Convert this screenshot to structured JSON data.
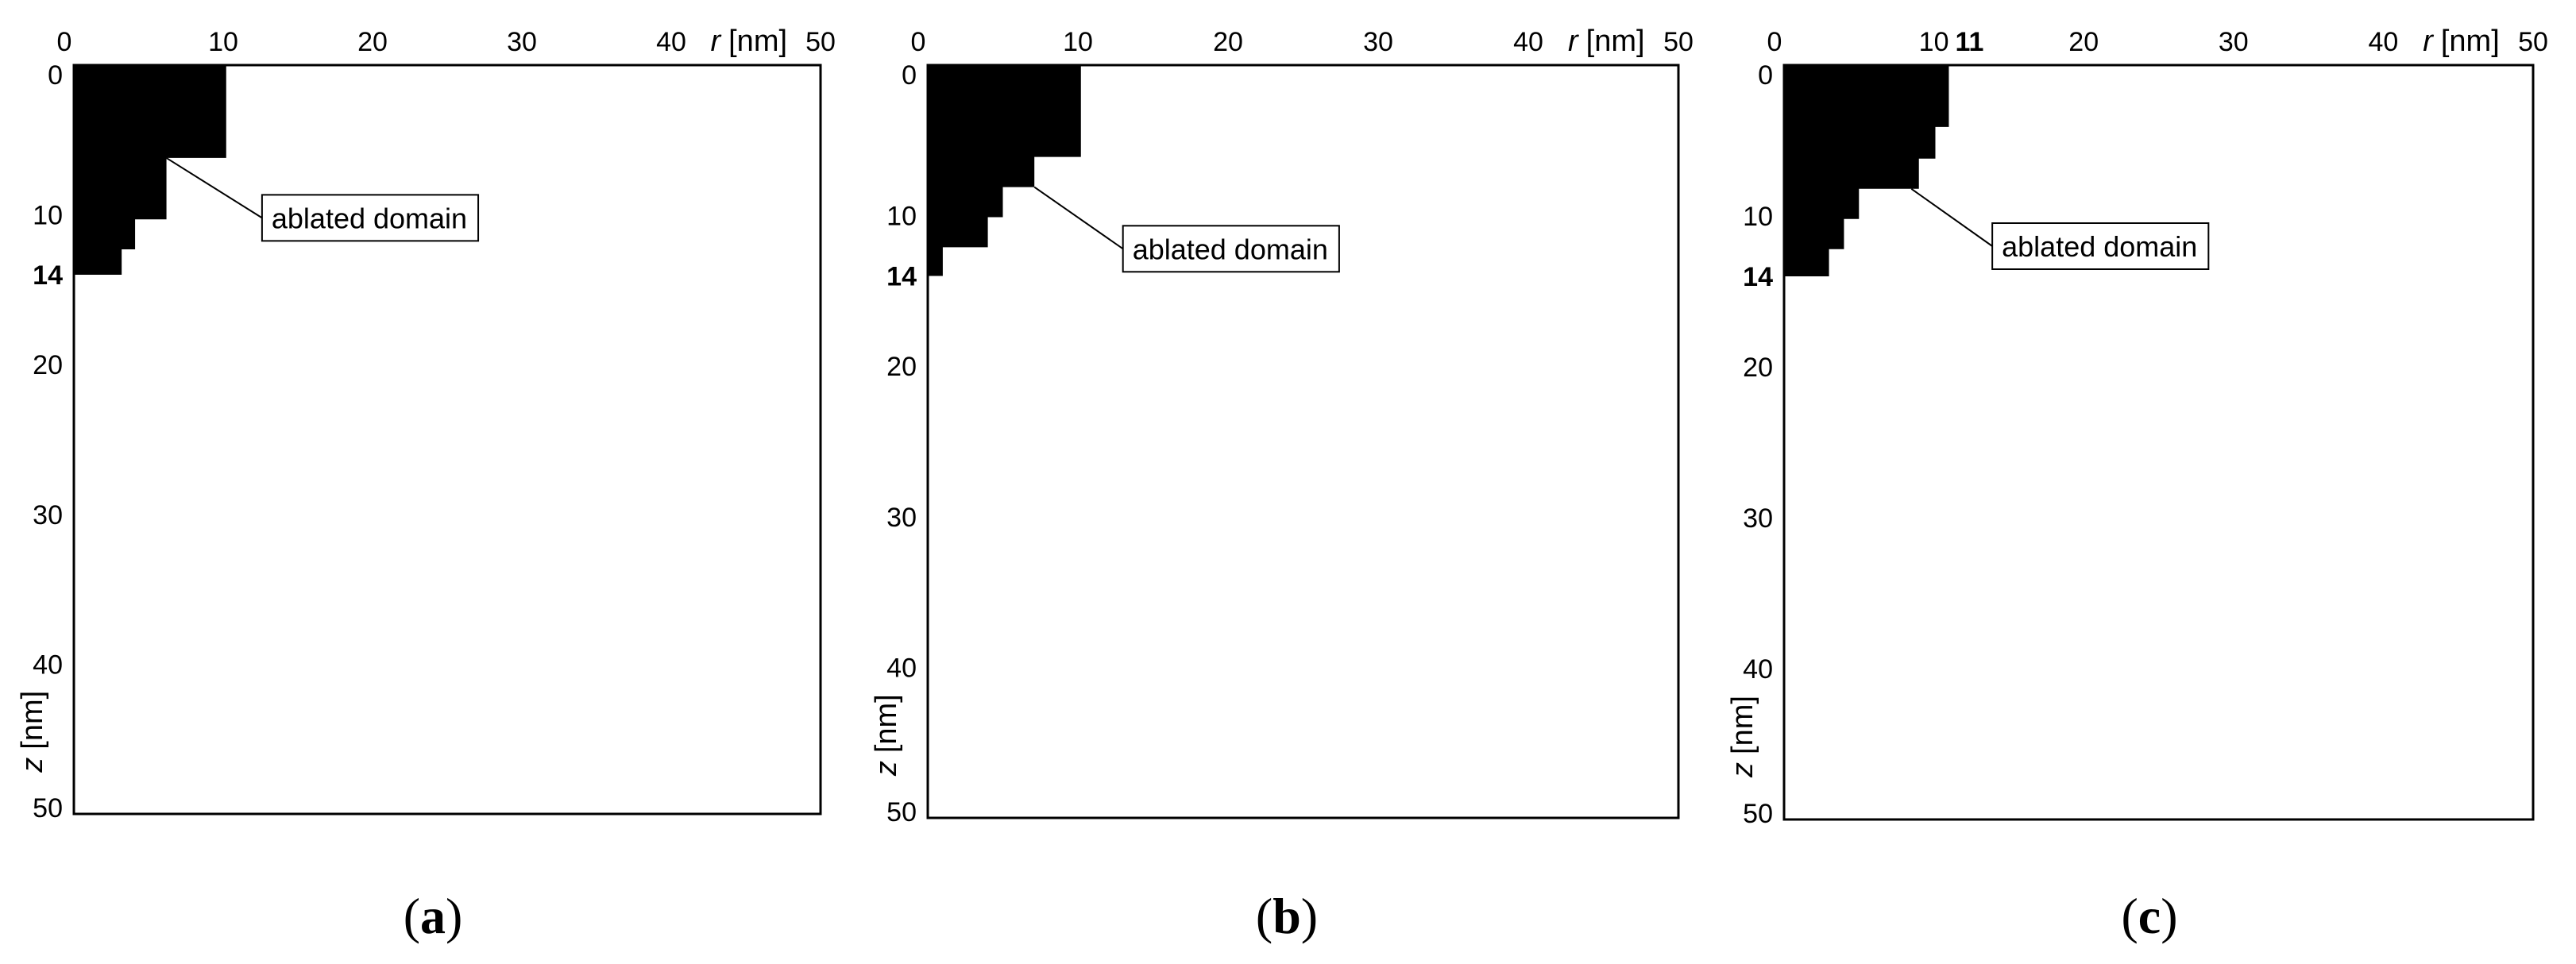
{
  "chart_data": [
    {
      "type": "diagram",
      "panel_label": "(a)",
      "panel_letter": "a",
      "x_axis": {
        "label_var": "r",
        "label_unit": "[nm]",
        "range": [
          0,
          50
        ],
        "ticks": [
          "0",
          "10",
          "20",
          "30",
          "40",
          "50"
        ],
        "extra_ticks": []
      },
      "y_axis": {
        "label_var": "z",
        "label_unit": "[nm]",
        "range": [
          0,
          50
        ],
        "ticks": [
          "0",
          "10",
          "20",
          "30",
          "40",
          "50"
        ],
        "extra_ticks": [
          {
            "value": 14,
            "text": "14"
          }
        ]
      },
      "ablated_profile": [
        {
          "z_from": 0,
          "z_to": 6.2,
          "r": 10.2
        },
        {
          "z_from": 6.2,
          "z_to": 10.3,
          "r": 6.2
        },
        {
          "z_from": 10.3,
          "z_to": 12.3,
          "r": 4.1
        },
        {
          "z_from": 12.3,
          "z_to": 14.0,
          "r": 3.2
        }
      ],
      "annotation": {
        "text": "ablated domain",
        "anchor": {
          "r": 6.2,
          "z": 6.2
        },
        "box": {
          "r": 12.6,
          "z": 10.2
        }
      }
    },
    {
      "type": "diagram",
      "panel_label": "(b)",
      "panel_letter": "b",
      "x_axis": {
        "label_var": "r",
        "label_unit": "[nm]",
        "range": [
          0,
          50
        ],
        "ticks": [
          "0",
          "10",
          "20",
          "30",
          "40",
          "50"
        ],
        "extra_ticks": []
      },
      "y_axis": {
        "label_var": "z",
        "label_unit": "[nm]",
        "range": [
          0,
          50
        ],
        "ticks": [
          "0",
          "10",
          "20",
          "30",
          "40",
          "50"
        ],
        "extra_ticks": [
          {
            "value": 14,
            "text": "14"
          }
        ]
      },
      "ablated_profile": [
        {
          "z_from": 0,
          "z_to": 6.1,
          "r": 10.2
        },
        {
          "z_from": 6.1,
          "z_to": 8.1,
          "r": 7.1
        },
        {
          "z_from": 8.1,
          "z_to": 10.1,
          "r": 5.0
        },
        {
          "z_from": 10.1,
          "z_to": 12.1,
          "r": 4.0
        },
        {
          "z_from": 12.1,
          "z_to": 14.0,
          "r": 1.0
        }
      ],
      "annotation": {
        "text": "ablated domain",
        "anchor": {
          "r": 7.1,
          "z": 8.1
        },
        "box": {
          "r": 13.0,
          "z": 12.2
        }
      }
    },
    {
      "type": "diagram",
      "panel_label": "(c)",
      "panel_letter": "c",
      "x_axis": {
        "label_var": "r",
        "label_unit": "[nm]",
        "range": [
          0,
          50
        ],
        "ticks": [
          "0",
          "10",
          "20",
          "30",
          "40",
          "50"
        ],
        "extra_ticks": [
          {
            "value": 11,
            "text": "11"
          }
        ]
      },
      "y_axis": {
        "label_var": "z",
        "label_unit": "[nm]",
        "range": [
          0,
          50
        ],
        "ticks": [
          "0",
          "10",
          "20",
          "30",
          "40",
          "50"
        ],
        "extra_ticks": [
          {
            "value": 14,
            "text": "14"
          }
        ]
      },
      "ablated_profile": [
        {
          "z_from": 0,
          "z_to": 4.1,
          "r": 11.0
        },
        {
          "z_from": 4.1,
          "z_to": 6.2,
          "r": 10.1
        },
        {
          "z_from": 6.2,
          "z_to": 8.2,
          "r": 9.0
        },
        {
          "z_from": 8.2,
          "z_to": 10.2,
          "r": 5.0
        },
        {
          "z_from": 10.2,
          "z_to": 12.2,
          "r": 4.0
        },
        {
          "z_from": 12.2,
          "z_to": 14.0,
          "r": 3.0
        }
      ],
      "annotation": {
        "text": "ablated domain",
        "anchor": {
          "r": 8.5,
          "z": 8.2
        },
        "box": {
          "r": 13.9,
          "z": 12.0
        }
      }
    }
  ]
}
